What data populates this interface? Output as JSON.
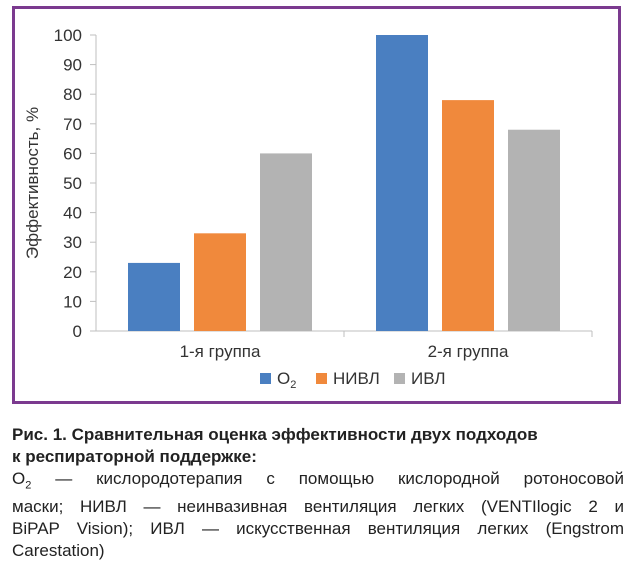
{
  "chart_data": {
    "type": "bar",
    "categories": [
      "1-я группа",
      "2-я группа"
    ],
    "series": [
      {
        "name": "O",
        "name_sub": "2",
        "color": "#4a7fc1",
        "values": [
          23,
          100
        ]
      },
      {
        "name": "НИВЛ",
        "color": "#f0893c",
        "values": [
          33,
          78
        ]
      },
      {
        "name": "ИВЛ",
        "color": "#b3b3b3",
        "values": [
          60,
          68
        ]
      }
    ],
    "ylabel": "Эффективность, %",
    "ylim": [
      0,
      100
    ],
    "yticks": [
      0,
      10,
      20,
      30,
      40,
      50,
      60,
      70,
      80,
      90,
      100
    ],
    "grid": false,
    "legend": "bottom"
  },
  "caption": {
    "title_line1": "Рис. 1. Сравнительная оценка эффективности двух подходов",
    "title_line2": "к респираторной поддержке:",
    "o2_symbol": "O",
    "o2_sub": "2",
    "line1_rest": " — кислородотерапия с помощью кислородной ротоносовой",
    "line2": "маски; НИВЛ — неинвазивная вентиляция легких (VENTIlogic 2 и",
    "line3": "BiPAP Vision); ИВЛ — искусственная вентиляция легких (Engstrom",
    "line4": "Carestation)"
  }
}
